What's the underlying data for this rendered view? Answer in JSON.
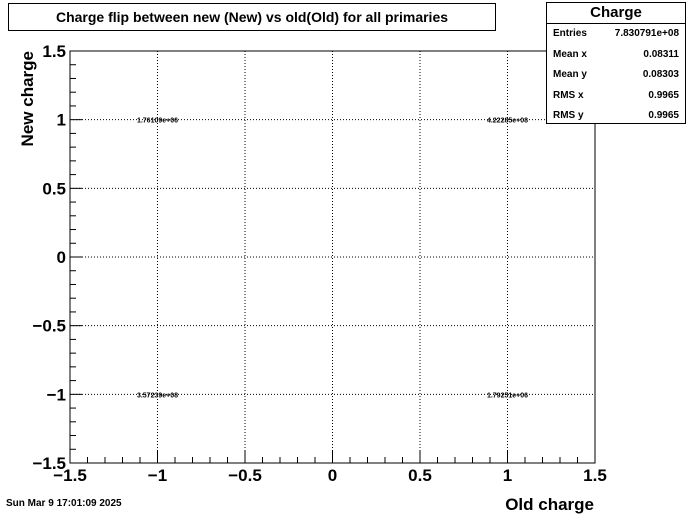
{
  "chart_data": {
    "type": "heatmap",
    "title": "Charge flip between new (New) vs old(Old) for all primaries",
    "xlabel": "Old charge",
    "ylabel": "New charge",
    "xlim": [
      -1.5,
      1.5
    ],
    "ylim": [
      -1.5,
      1.5
    ],
    "grid": true,
    "x_ticks": [
      {
        "value": -1.5,
        "label": "−1.5"
      },
      {
        "value": -1,
        "label": "−1"
      },
      {
        "value": -0.5,
        "label": "−0.5"
      },
      {
        "value": 0,
        "label": "0"
      },
      {
        "value": 0.5,
        "label": "0.5"
      },
      {
        "value": 1,
        "label": "1"
      },
      {
        "value": 1.5,
        "label": "1.5"
      }
    ],
    "y_ticks": [
      {
        "value": -1.5,
        "label": "−1.5"
      },
      {
        "value": -1,
        "label": "−1"
      },
      {
        "value": -0.5,
        "label": "−0.5"
      },
      {
        "value": 0,
        "label": "0"
      },
      {
        "value": 0.5,
        "label": "0.5"
      },
      {
        "value": 1,
        "label": "1"
      },
      {
        "value": 1.5,
        "label": "1.5"
      }
    ],
    "cells": [
      {
        "x": -1,
        "y": 1,
        "label": "1.76109e+06"
      },
      {
        "x": 1,
        "y": 1,
        "label": "4.22285e+08"
      },
      {
        "x": -1,
        "y": -1,
        "label": "3.57239e+08"
      },
      {
        "x": 1,
        "y": -1,
        "label": "1.79251e+06"
      }
    ]
  },
  "stats": {
    "name": "Charge",
    "rows": [
      {
        "label": "Entries",
        "value": "7.830791e+08"
      },
      {
        "label": "Mean x",
        "value": "0.08311"
      },
      {
        "label": "Mean y",
        "value": "0.08303"
      },
      {
        "label": "RMS x",
        "value": "0.9965"
      },
      {
        "label": "RMS y",
        "value": "0.9965"
      }
    ]
  },
  "footer": {
    "date": "Sun Mar  9 17:01:09 2025"
  }
}
